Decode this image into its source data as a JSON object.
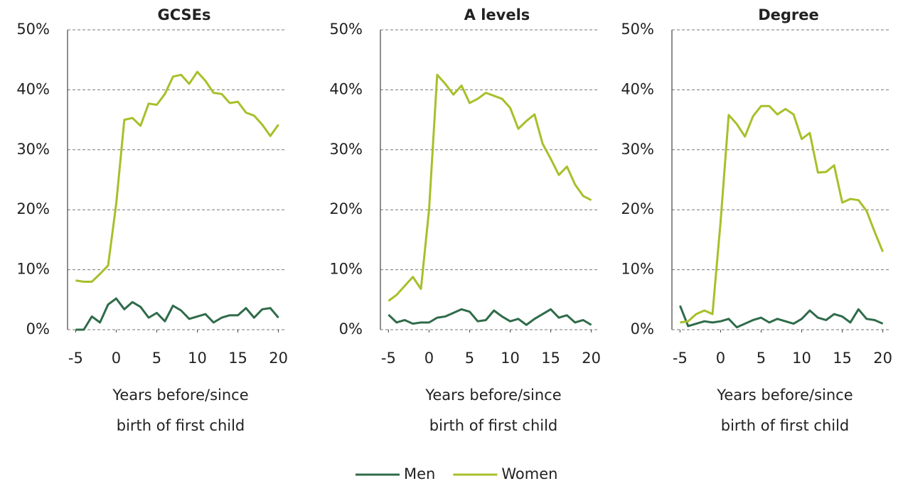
{
  "chart_data": [
    {
      "type": "line",
      "title": "GCSEs",
      "x_label": [
        "Years before/since",
        "birth of first child"
      ],
      "x": [
        -5,
        -4,
        -3,
        -2,
        -1,
        0,
        1,
        2,
        3,
        4,
        5,
        6,
        7,
        8,
        9,
        10,
        11,
        12,
        13,
        14,
        15,
        16,
        17,
        18,
        19,
        20
      ],
      "xlim": [
        -6,
        21
      ],
      "xticks": [
        -5,
        0,
        5,
        10,
        15,
        20
      ],
      "ylim": [
        0,
        50
      ],
      "yticks": [
        {
          "value": 0,
          "label": "0%"
        },
        {
          "value": 10,
          "label": "10%"
        },
        {
          "value": 20,
          "label": "20%"
        },
        {
          "value": 30,
          "label": "30%"
        },
        {
          "value": 40,
          "label": "40%"
        },
        {
          "value": 50,
          "label": "50%"
        }
      ],
      "grid": true,
      "legend": "bottom",
      "series": [
        {
          "name": "Men",
          "color": "#2f6b4a",
          "values": [
            0,
            0,
            2.2,
            1.2,
            4.2,
            5.2,
            3.4,
            4.6,
            3.8,
            2,
            2.8,
            1.4,
            4,
            3.2,
            1.8,
            2.2,
            2.6,
            1.2,
            2,
            2.4,
            2.4,
            3.6,
            2,
            3.4,
            3.6,
            2
          ]
        },
        {
          "name": "Women",
          "color": "#a8bf2a",
          "values": [
            8.2,
            8,
            8,
            9.3,
            10.7,
            21,
            35,
            35.3,
            34,
            37.7,
            37.5,
            39.3,
            42.2,
            42.5,
            41,
            43,
            41.5,
            39.5,
            39.3,
            37.8,
            38,
            36.2,
            35.7,
            34.2,
            32.3,
            34.2
          ]
        }
      ]
    },
    {
      "type": "line",
      "title": "A levels",
      "x_label": [
        "Years before/since",
        "birth of first child"
      ],
      "x": [
        -5,
        -4,
        -3,
        -2,
        -1,
        0,
        1,
        2,
        3,
        4,
        5,
        6,
        7,
        8,
        9,
        10,
        11,
        12,
        13,
        14,
        15,
        16,
        17,
        18,
        19,
        20
      ],
      "xlim": [
        -6,
        21
      ],
      "xticks": [
        -5,
        0,
        5,
        10,
        15,
        20
      ],
      "ylim": [
        0,
        50
      ],
      "yticks": [
        {
          "value": 0,
          "label": "0%"
        },
        {
          "value": 10,
          "label": "10%"
        },
        {
          "value": 20,
          "label": "20%"
        },
        {
          "value": 30,
          "label": "30%"
        },
        {
          "value": 40,
          "label": "40%"
        },
        {
          "value": 50,
          "label": "50%"
        }
      ],
      "grid": true,
      "series": [
        {
          "name": "Men",
          "color": "#2f6b4a",
          "values": [
            2.5,
            1.2,
            1.6,
            1,
            1.2,
            1.2,
            2,
            2.2,
            2.8,
            3.4,
            3,
            1.4,
            1.6,
            3.2,
            2.2,
            1.4,
            1.8,
            0.8,
            1.8,
            2.6,
            3.4,
            2,
            2.4,
            1.2,
            1.6,
            0.8
          ]
        },
        {
          "name": "Women",
          "color": "#a8bf2a",
          "values": [
            4.8,
            5.8,
            7.3,
            8.8,
            6.8,
            20,
            42.5,
            41,
            39.2,
            40.7,
            37.8,
            38.5,
            39.5,
            39,
            38.5,
            37,
            33.5,
            34.8,
            35.9,
            31,
            28.5,
            25.8,
            27.2,
            24.2,
            22.3,
            21.6
          ]
        }
      ]
    },
    {
      "type": "line",
      "title": "Degree",
      "x_label": [
        "Years before/since",
        "birth of first child"
      ],
      "x": [
        -5,
        -4,
        -3,
        -2,
        -1,
        0,
        1,
        2,
        3,
        4,
        5,
        6,
        7,
        8,
        9,
        10,
        11,
        12,
        13,
        14,
        15,
        16,
        17,
        18,
        19,
        20
      ],
      "xlim": [
        -6,
        21
      ],
      "xticks": [
        -5,
        0,
        5,
        10,
        15,
        20
      ],
      "ylim": [
        0,
        50
      ],
      "yticks": [
        {
          "value": 0,
          "label": "0%"
        },
        {
          "value": 10,
          "label": "10%"
        },
        {
          "value": 20,
          "label": "20%"
        },
        {
          "value": 30,
          "label": "30%"
        },
        {
          "value": 40,
          "label": "40%"
        },
        {
          "value": 50,
          "label": "50%"
        }
      ],
      "grid": true,
      "series": [
        {
          "name": "Men",
          "color": "#2f6b4a",
          "values": [
            4,
            0.6,
            1,
            1.4,
            1.2,
            1.4,
            1.8,
            0.4,
            1,
            1.6,
            2,
            1.2,
            1.8,
            1.4,
            1,
            1.8,
            3.2,
            2,
            1.6,
            2.6,
            2.2,
            1.2,
            3.4,
            1.8,
            1.6,
            1
          ]
        },
        {
          "name": "Women",
          "color": "#a8bf2a",
          "values": [
            1.2,
            1.4,
            2.6,
            3.2,
            2.6,
            18,
            35.8,
            34.3,
            32.2,
            35.6,
            37.3,
            37.3,
            35.9,
            36.8,
            35.9,
            31.8,
            32.8,
            26.2,
            26.3,
            27.4,
            21.2,
            21.8,
            21.6,
            19.8,
            16.3,
            13
          ]
        }
      ]
    }
  ]
}
